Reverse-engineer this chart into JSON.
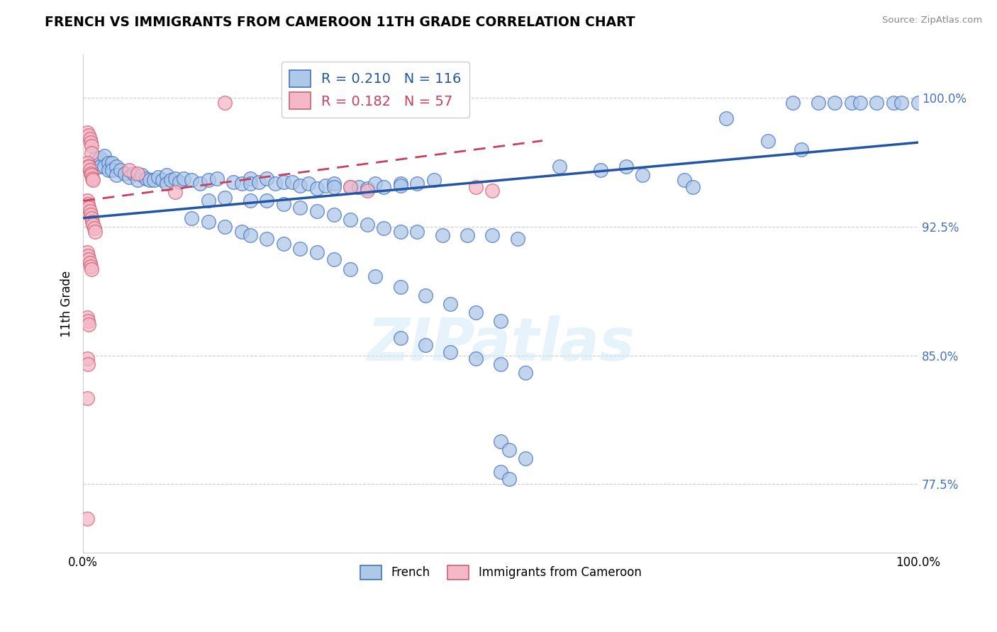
{
  "title": "FRENCH VS IMMIGRANTS FROM CAMEROON 11TH GRADE CORRELATION CHART",
  "source": "Source: ZipAtlas.com",
  "ylabel": "11th Grade",
  "legend_french": "French",
  "legend_cameroon": "Immigrants from Cameroon",
  "R_french": 0.21,
  "N_french": 116,
  "R_cameroon": 0.182,
  "N_cameroon": 57,
  "xlim": [
    0.0,
    1.0
  ],
  "ylim": [
    0.735,
    1.025
  ],
  "yticks": [
    0.775,
    0.85,
    0.925,
    1.0
  ],
  "ytick_labels": [
    "77.5%",
    "85.0%",
    "92.5%",
    "100.0%"
  ],
  "watermark": "ZIPatlas",
  "french_color": "#aec8e8",
  "french_edge_color": "#4472c4",
  "cameroon_color": "#f4b8c8",
  "cameroon_edge_color": "#d06070",
  "french_line_color": "#2255a4",
  "cameroon_line_color": "#c84060",
  "blue_scatter_x": [
    0.015,
    0.02,
    0.02,
    0.025,
    0.025,
    0.03,
    0.03,
    0.035,
    0.035,
    0.04,
    0.04,
    0.045,
    0.05,
    0.055,
    0.06,
    0.065,
    0.07,
    0.075,
    0.08,
    0.085,
    0.09,
    0.095,
    0.1,
    0.1,
    0.105,
    0.11,
    0.115,
    0.12,
    0.13,
    0.14,
    0.15,
    0.16,
    0.18,
    0.19,
    0.2,
    0.2,
    0.21,
    0.22,
    0.23,
    0.24,
    0.25,
    0.26,
    0.27,
    0.28,
    0.29,
    0.3,
    0.3,
    0.32,
    0.33,
    0.34,
    0.35,
    0.36,
    0.38,
    0.38,
    0.4,
    0.42,
    0.15,
    0.17,
    0.2,
    0.22,
    0.24,
    0.26,
    0.28,
    0.3,
    0.32,
    0.34,
    0.36,
    0.38,
    0.4,
    0.43,
    0.46,
    0.49,
    0.52,
    0.13,
    0.15,
    0.17,
    0.19,
    0.2,
    0.22,
    0.24,
    0.26,
    0.28,
    0.3,
    0.32,
    0.35,
    0.38,
    0.41,
    0.44,
    0.47,
    0.5,
    0.38,
    0.41,
    0.44,
    0.47,
    0.5,
    0.53,
    0.5,
    0.51,
    0.53,
    0.5,
    0.51,
    0.65,
    0.72,
    0.73,
    0.85,
    0.88,
    0.9,
    0.92,
    0.93,
    0.95,
    0.97,
    0.98,
    1.0,
    0.57,
    0.62,
    0.67,
    0.77,
    0.82,
    0.86
  ],
  "blue_scatter_y": [
    0.965,
    0.965,
    0.96,
    0.966,
    0.96,
    0.962,
    0.958,
    0.962,
    0.958,
    0.96,
    0.955,
    0.958,
    0.956,
    0.954,
    0.956,
    0.952,
    0.955,
    0.953,
    0.952,
    0.952,
    0.954,
    0.952,
    0.955,
    0.95,
    0.952,
    0.953,
    0.951,
    0.953,
    0.952,
    0.95,
    0.952,
    0.953,
    0.951,
    0.95,
    0.953,
    0.95,
    0.951,
    0.953,
    0.95,
    0.951,
    0.951,
    0.949,
    0.95,
    0.947,
    0.949,
    0.95,
    0.948,
    0.948,
    0.948,
    0.947,
    0.95,
    0.948,
    0.95,
    0.949,
    0.95,
    0.952,
    0.94,
    0.942,
    0.94,
    0.94,
    0.938,
    0.936,
    0.934,
    0.932,
    0.929,
    0.926,
    0.924,
    0.922,
    0.922,
    0.92,
    0.92,
    0.92,
    0.918,
    0.93,
    0.928,
    0.925,
    0.922,
    0.92,
    0.918,
    0.915,
    0.912,
    0.91,
    0.906,
    0.9,
    0.896,
    0.89,
    0.885,
    0.88,
    0.875,
    0.87,
    0.86,
    0.856,
    0.852,
    0.848,
    0.845,
    0.84,
    0.8,
    0.795,
    0.79,
    0.782,
    0.778,
    0.96,
    0.952,
    0.948,
    0.997,
    0.997,
    0.997,
    0.997,
    0.997,
    0.997,
    0.997,
    0.997,
    0.997,
    0.96,
    0.958,
    0.955,
    0.988,
    0.975,
    0.97
  ],
  "pink_scatter_x": [
    0.005,
    0.007,
    0.008,
    0.009,
    0.01,
    0.01,
    0.005,
    0.006,
    0.007,
    0.008,
    0.009,
    0.01,
    0.011,
    0.012,
    0.005,
    0.006,
    0.007,
    0.008,
    0.009,
    0.01,
    0.011,
    0.012,
    0.013,
    0.014,
    0.005,
    0.006,
    0.007,
    0.008,
    0.009,
    0.01,
    0.005,
    0.006,
    0.007,
    0.005,
    0.006,
    0.005,
    0.17,
    0.055,
    0.065,
    0.11,
    0.32,
    0.34,
    0.47,
    0.49,
    0.005
  ],
  "pink_scatter_y": [
    0.98,
    0.978,
    0.976,
    0.974,
    0.972,
    0.968,
    0.962,
    0.96,
    0.96,
    0.958,
    0.956,
    0.955,
    0.953,
    0.952,
    0.94,
    0.938,
    0.936,
    0.934,
    0.932,
    0.93,
    0.928,
    0.926,
    0.924,
    0.922,
    0.91,
    0.908,
    0.906,
    0.904,
    0.902,
    0.9,
    0.872,
    0.87,
    0.868,
    0.848,
    0.845,
    0.825,
    0.997,
    0.958,
    0.956,
    0.945,
    0.948,
    0.946,
    0.948,
    0.946,
    0.755
  ],
  "blue_trend_x": [
    0.0,
    1.0
  ],
  "blue_trend_y": [
    0.93,
    0.974
  ],
  "pink_trend_x": [
    0.0,
    0.55
  ],
  "pink_trend_y": [
    0.94,
    0.975
  ]
}
